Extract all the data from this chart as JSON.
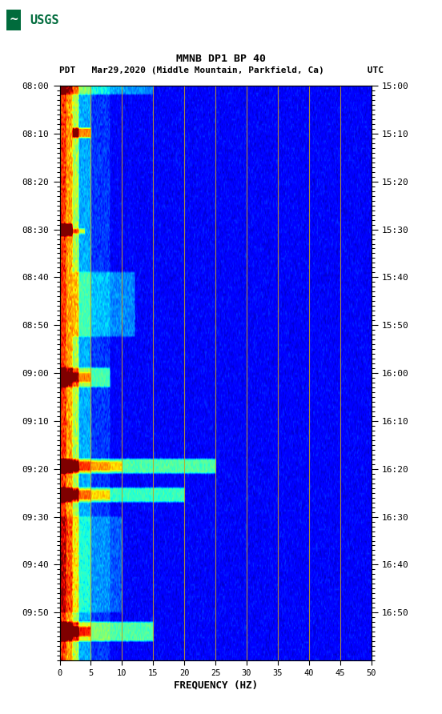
{
  "title_line1": "MMNB DP1 BP 40",
  "title_line2": "PDT   Mar29,2020 (Middle Mountain, Parkfield, Ca)        UTC",
  "xlabel": "FREQUENCY (HZ)",
  "freq_min": 0,
  "freq_max": 50,
  "freq_ticks": [
    0,
    5,
    10,
    15,
    20,
    25,
    30,
    35,
    40,
    45,
    50
  ],
  "time_labels_left": [
    "08:00",
    "08:10",
    "08:20",
    "08:30",
    "08:40",
    "08:50",
    "09:00",
    "09:10",
    "09:20",
    "09:30",
    "09:40",
    "09:50"
  ],
  "time_labels_right": [
    "15:00",
    "15:10",
    "15:20",
    "15:30",
    "15:40",
    "15:50",
    "16:00",
    "16:10",
    "16:20",
    "16:30",
    "16:40",
    "16:50"
  ],
  "n_time_steps": 240,
  "n_freq_steps": 500,
  "background_color": "#ffffff",
  "usgs_green": "#006b3c",
  "grid_color": "#c8a020",
  "colormap": "jet"
}
